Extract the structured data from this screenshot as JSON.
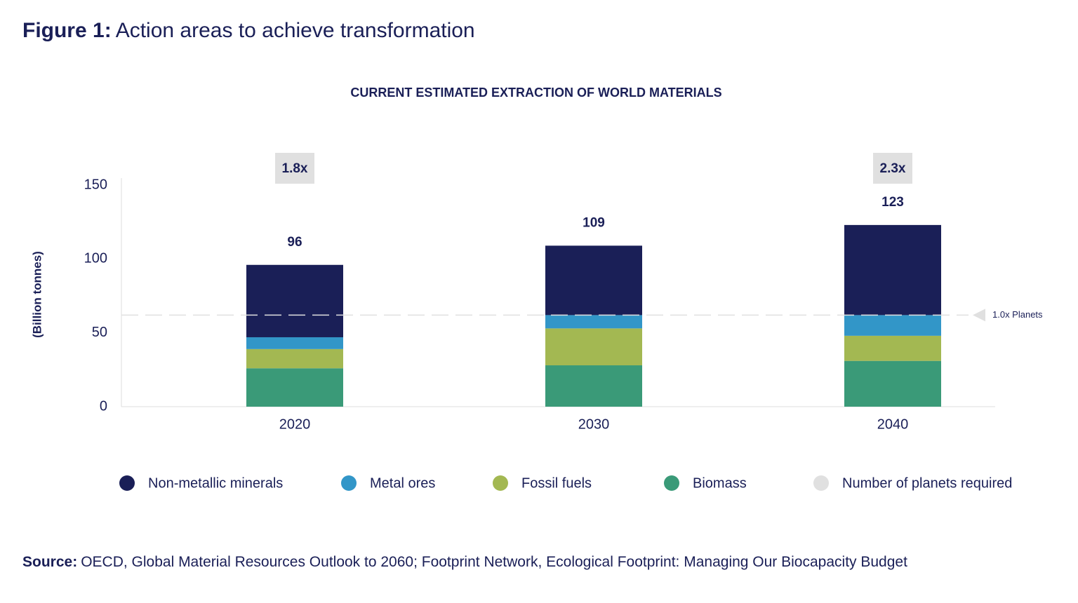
{
  "header": {
    "figure": "Figure 1:",
    "title": "Action areas to achieve transformation"
  },
  "chart_data": {
    "type": "stacked_bar",
    "title": "CURRENT ESTIMATED EXTRACTION OF WORLD MATERIALS",
    "y_label": "(Billion tonnes)",
    "categories": [
      "2020",
      "2030",
      "2040"
    ],
    "series": [
      {
        "name": "Biomass",
        "color": "#3a9a78",
        "values": [
          26,
          28,
          31
        ]
      },
      {
        "name": "Fossil fuels",
        "color": "#a3b852",
        "values": [
          13,
          25,
          17
        ]
      },
      {
        "name": "Metal ores",
        "color": "#3296c8",
        "values": [
          8,
          9,
          14
        ]
      },
      {
        "name": "Non-metallic minerals",
        "color": "#1a1f57",
        "values": [
          49,
          47,
          61
        ]
      }
    ],
    "totals": [
      96,
      109,
      123
    ],
    "planet_labels": [
      "1.8x",
      null,
      "2.3x"
    ],
    "planet_legend": {
      "name": "Number of planets required",
      "color": "#e0e0e0"
    },
    "reference_line": {
      "value": 62,
      "label": "1.0x Planets"
    },
    "ylim": [
      0,
      150
    ],
    "yticks": [
      0,
      50,
      100,
      150
    ]
  },
  "source": {
    "prefix": "Source:",
    "text": "OECD, Global Material Resources Outlook to 2060; Footprint Network, Ecological Footprint: Managing Our Biocapacity Budget"
  }
}
